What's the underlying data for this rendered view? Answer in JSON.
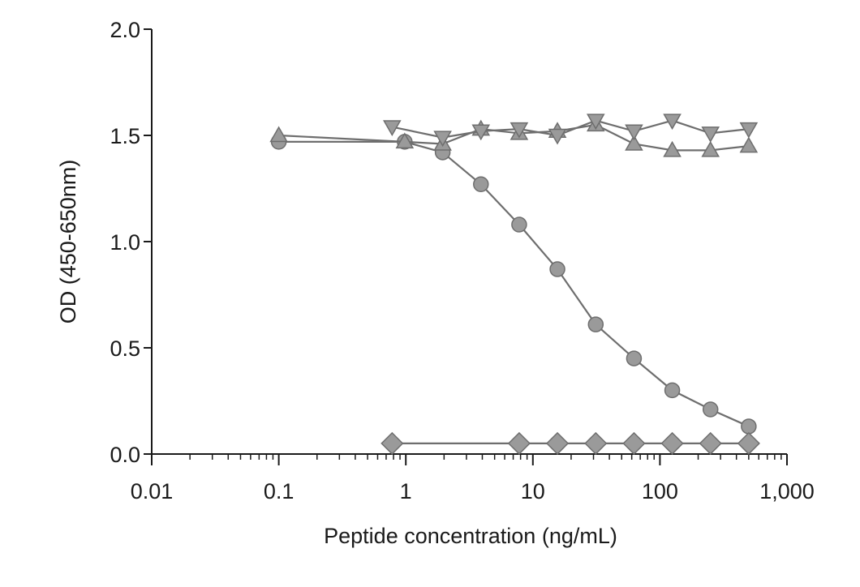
{
  "chart_data": {
    "type": "line",
    "title": "",
    "xlabel": "Peptide concentration (ng/mL)",
    "ylabel": "OD (450-650nm)",
    "xscale": "log",
    "xlim": [
      0.01,
      1000
    ],
    "ylim": [
      0.0,
      2.0
    ],
    "x_ticks": [
      {
        "value": 0.01,
        "label": "0.01"
      },
      {
        "value": 0.1,
        "label": "0.1"
      },
      {
        "value": 1,
        "label": "1"
      },
      {
        "value": 10,
        "label": "10"
      },
      {
        "value": 100,
        "label": "100"
      },
      {
        "value": 1000,
        "label": "1,000"
      }
    ],
    "y_ticks": [
      {
        "value": 0.0,
        "label": "0.0"
      },
      {
        "value": 0.5,
        "label": "0.5"
      },
      {
        "value": 1.0,
        "label": "1.0"
      },
      {
        "value": 1.5,
        "label": "1.5"
      },
      {
        "value": 2.0,
        "label": "2.0"
      }
    ],
    "grid": false,
    "legend": "none",
    "series": [
      {
        "name": "circle",
        "marker": "circle",
        "x": [
          0.1,
          0.98,
          1.95,
          3.9,
          7.8,
          15.6,
          31.25,
          62.5,
          125,
          250,
          500
        ],
        "y": [
          1.47,
          1.47,
          1.42,
          1.27,
          1.08,
          0.87,
          0.61,
          0.45,
          0.3,
          0.21,
          0.13
        ]
      },
      {
        "name": "triangle-up",
        "marker": "triangle-up",
        "x": [
          0.1,
          0.98,
          1.95,
          3.9,
          7.8,
          15.6,
          31.25,
          62.5,
          125,
          250,
          500
        ],
        "y": [
          1.5,
          1.47,
          1.46,
          1.53,
          1.51,
          1.52,
          1.55,
          1.46,
          1.43,
          1.43,
          1.45
        ]
      },
      {
        "name": "triangle-down",
        "marker": "triangle-down",
        "x": [
          0.78,
          1.95,
          3.9,
          7.8,
          15.6,
          31.25,
          62.5,
          125,
          250,
          500
        ],
        "y": [
          1.54,
          1.49,
          1.52,
          1.53,
          1.5,
          1.57,
          1.52,
          1.57,
          1.51,
          1.53
        ]
      },
      {
        "name": "diamond",
        "marker": "diamond",
        "x": [
          0.78,
          7.8,
          15.6,
          31.25,
          62.5,
          125,
          250,
          500
        ],
        "y": [
          0.05,
          0.05,
          0.05,
          0.05,
          0.05,
          0.05,
          0.05,
          0.05
        ]
      }
    ],
    "colors": {
      "axis": "#1a1a1a",
      "series_stroke": "#6e6e6e",
      "marker_fill": "#9a9a9a"
    }
  }
}
